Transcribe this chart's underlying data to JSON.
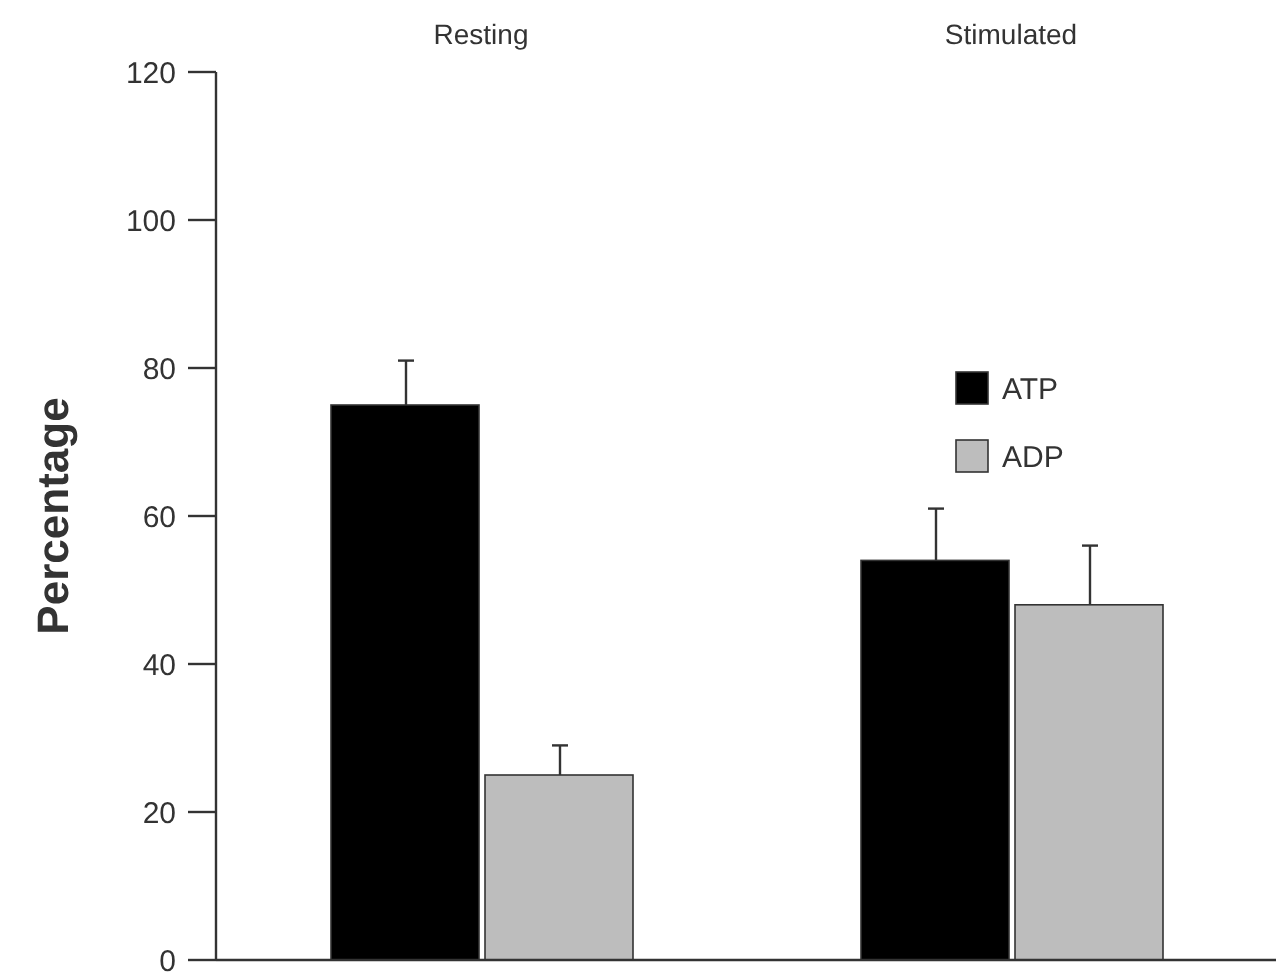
{
  "chart_data": {
    "type": "bar",
    "ylabel": "Percentage",
    "categories": [
      "Resting",
      "Stimulated"
    ],
    "series": [
      {
        "name": "ATP",
        "color": "#000000",
        "values": [
          75,
          54
        ],
        "errors": [
          [
            75,
            81
          ],
          [
            54,
            61
          ]
        ]
      },
      {
        "name": "ADP",
        "color": "#bdbdbd",
        "values": [
          25,
          48
        ],
        "errors": [
          [
            25,
            29
          ],
          [
            48,
            56
          ]
        ]
      }
    ],
    "ylim": [
      0,
      120
    ],
    "yticks": [
      0,
      20,
      40,
      60,
      80,
      100,
      120
    ],
    "grid": false,
    "legend": "top right"
  }
}
